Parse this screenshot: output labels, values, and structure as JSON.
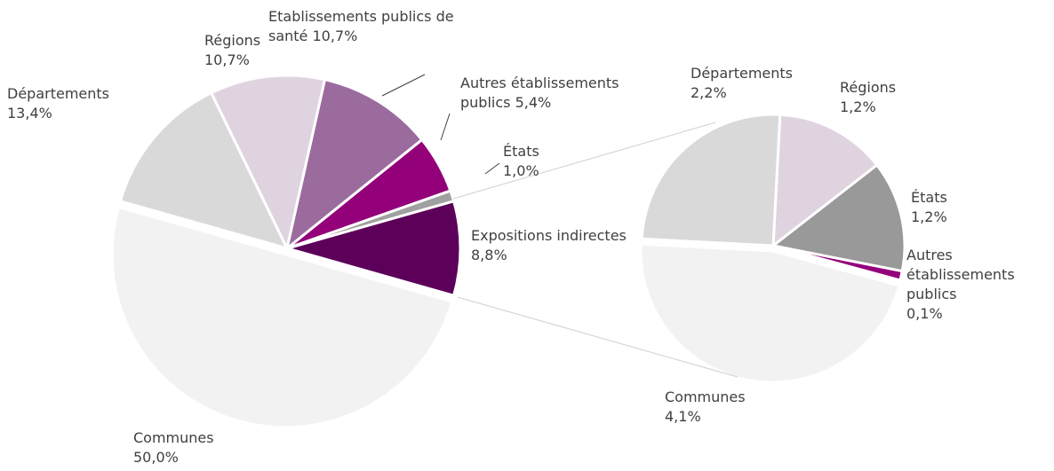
{
  "chart_data": [
    {
      "type": "pie",
      "categories": [
        "Expositions indirectes",
        "Communes",
        "Départements",
        "Régions",
        "Etablissements publics de santé",
        "Autres établissements publics",
        "États"
      ],
      "values": [
        8.8,
        50.0,
        13.4,
        10.7,
        10.7,
        5.4,
        1.0
      ],
      "value_labels": [
        "8,8%",
        "50,0%",
        "13,4%",
        "10,7%",
        "10,7%",
        "5,4%",
        "1,0%"
      ],
      "colors": [
        "#5c005a",
        "#f2f2f2",
        "#d9d9d9",
        "#e0d3e0",
        "#9b6b9e",
        "#93007a",
        "#a0a0a0"
      ]
    },
    {
      "type": "pie",
      "categories": [
        "Régions",
        "États",
        "Autres établissements publics",
        "Communes",
        "Départements"
      ],
      "values": [
        1.2,
        1.2,
        0.1,
        4.1,
        2.2
      ],
      "value_labels": [
        "1,2%",
        "1,2%",
        "0,1%",
        "4,1%",
        "2,2%"
      ],
      "colors": [
        "#e0d3e0",
        "#999999",
        "#93007a",
        "#f2f2f2",
        "#d9d9d9"
      ]
    }
  ]
}
